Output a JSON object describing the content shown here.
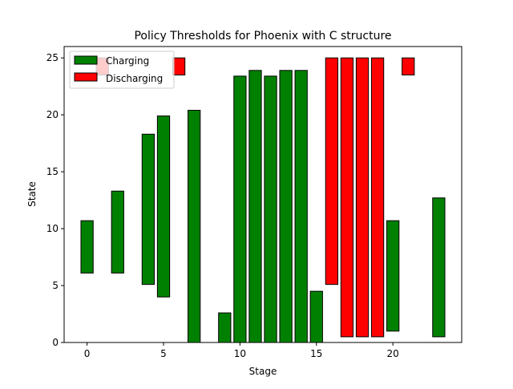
{
  "chart_data": {
    "type": "bar",
    "title": "Policy Thresholds for Phoenix with C structure",
    "xlabel": "Stage",
    "ylabel": "State",
    "xlim": [
      -1.5,
      24.5
    ],
    "ylim": [
      0,
      26
    ],
    "xticks": [
      0,
      5,
      10,
      15,
      20
    ],
    "yticks": [
      0,
      5,
      10,
      15,
      20,
      25
    ],
    "legend_position": "upper-left",
    "grid": false,
    "series": [
      {
        "name": "Charging",
        "color": "#008000",
        "bars": [
          {
            "stage": 0,
            "low": 6.1,
            "high": 10.7
          },
          {
            "stage": 1,
            "low": 0,
            "high": 0
          },
          {
            "stage": 2,
            "low": 6.1,
            "high": 13.3
          },
          {
            "stage": 3,
            "low": 0,
            "high": 0
          },
          {
            "stage": 4,
            "low": 5.1,
            "high": 18.3
          },
          {
            "stage": 5,
            "low": 4.0,
            "high": 19.9
          },
          {
            "stage": 6,
            "low": 0,
            "high": 0
          },
          {
            "stage": 7,
            "low": 0,
            "high": 20.4
          },
          {
            "stage": 8,
            "low": 0,
            "high": 0
          },
          {
            "stage": 9,
            "low": 0,
            "high": 2.6
          },
          {
            "stage": 10,
            "low": 0,
            "high": 23.4
          },
          {
            "stage": 11,
            "low": 0,
            "high": 23.9
          },
          {
            "stage": 12,
            "low": 0,
            "high": 23.4
          },
          {
            "stage": 13,
            "low": 0,
            "high": 23.9
          },
          {
            "stage": 14,
            "low": 0,
            "high": 23.9
          },
          {
            "stage": 15,
            "low": 0,
            "high": 4.5
          },
          {
            "stage": 20,
            "low": 1.0,
            "high": 10.7
          },
          {
            "stage": 22,
            "low": 0,
            "high": 0
          },
          {
            "stage": 23,
            "low": 0.5,
            "high": 12.7
          }
        ]
      },
      {
        "name": "Discharging",
        "color": "#ff0000",
        "bars": [
          {
            "stage": 1,
            "low": 23.5,
            "high": 25
          },
          {
            "stage": 6,
            "low": 23.5,
            "high": 25
          },
          {
            "stage": 16,
            "low": 5.1,
            "high": 25
          },
          {
            "stage": 17,
            "low": 0.5,
            "high": 25
          },
          {
            "stage": 18,
            "low": 0.5,
            "high": 25
          },
          {
            "stage": 19,
            "low": 0.5,
            "high": 25
          },
          {
            "stage": 21,
            "low": 23.5,
            "high": 25
          }
        ]
      }
    ]
  }
}
